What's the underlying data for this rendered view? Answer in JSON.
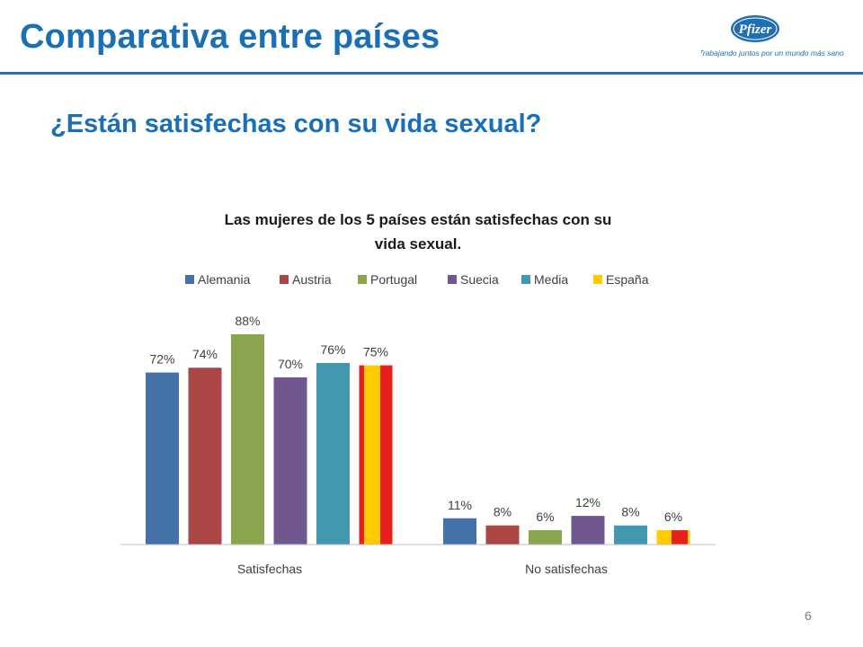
{
  "slide": {
    "title": "Comparativa entre países",
    "subtitle": "¿Están satisfechas con su vida sexual?",
    "page_number": "6"
  },
  "logo": {
    "brand": "Pfizer",
    "tagline": "Trabajando juntos por un mundo más sano",
    "color": "#1f6fb5"
  },
  "chart_data": {
    "type": "bar",
    "title_lines": [
      "Las mujeres de los 5 países están satisfechas con su",
      "vida sexual."
    ],
    "categories": [
      "Satisfechas",
      "No satisfechas"
    ],
    "series": [
      {
        "name": "Alemania",
        "values": [
          72,
          11
        ],
        "labels": [
          "72%",
          "11%"
        ],
        "color": "#4472a8"
      },
      {
        "name": "Austria",
        "values": [
          74,
          8
        ],
        "labels": [
          "74%",
          "8%"
        ],
        "color": "#aa4644"
      },
      {
        "name": "Portugal",
        "values": [
          88,
          6
        ],
        "labels": [
          "88%",
          "6%"
        ],
        "color": "#89a54e"
      },
      {
        "name": "Suecia",
        "values": [
          70,
          12
        ],
        "labels": [
          "70%",
          "12%"
        ],
        "color": "#71578f"
      },
      {
        "name": "Media",
        "values": [
          76,
          8
        ],
        "labels": [
          "76%",
          "8%"
        ],
        "color": "#4198af"
      },
      {
        "name": "España",
        "values": [
          75,
          6
        ],
        "labels": [
          "75%",
          "6%"
        ],
        "color": "#e8201b",
        "stripe_color": "#ffcc00",
        "pattern": "spanish-flag"
      }
    ],
    "ylim": [
      0,
      100
    ],
    "grid": false,
    "legend": "top",
    "y_axis_visible": false
  }
}
